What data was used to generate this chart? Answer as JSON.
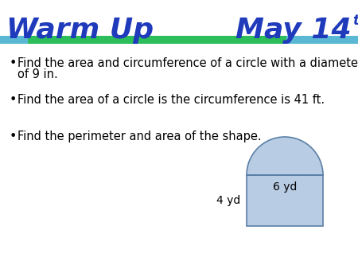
{
  "title_left": "Warm Up",
  "title_right": "May 14",
  "superscript": "th",
  "title_color": "#1F3ABB",
  "title_fontsize": 26,
  "bar1_color": "#5BB8D4",
  "bar2_color": "#2DBD5A",
  "bg_color": "#FFFFFF",
  "bullet1_line1": "Find the area and circumference of a circle with a diameter",
  "bullet1_line2": "of 9 in.",
  "bullet2": "Find the area of a circle is the circumference is 41 ft.",
  "bullet3": "Find the perimeter and area of the shape.",
  "text_fontsize": 10.5,
  "shape_fill": "#B8CCE4",
  "shape_edge": "#5B7FA6",
  "label_6yd": "6 yd",
  "label_4yd": "4 yd"
}
